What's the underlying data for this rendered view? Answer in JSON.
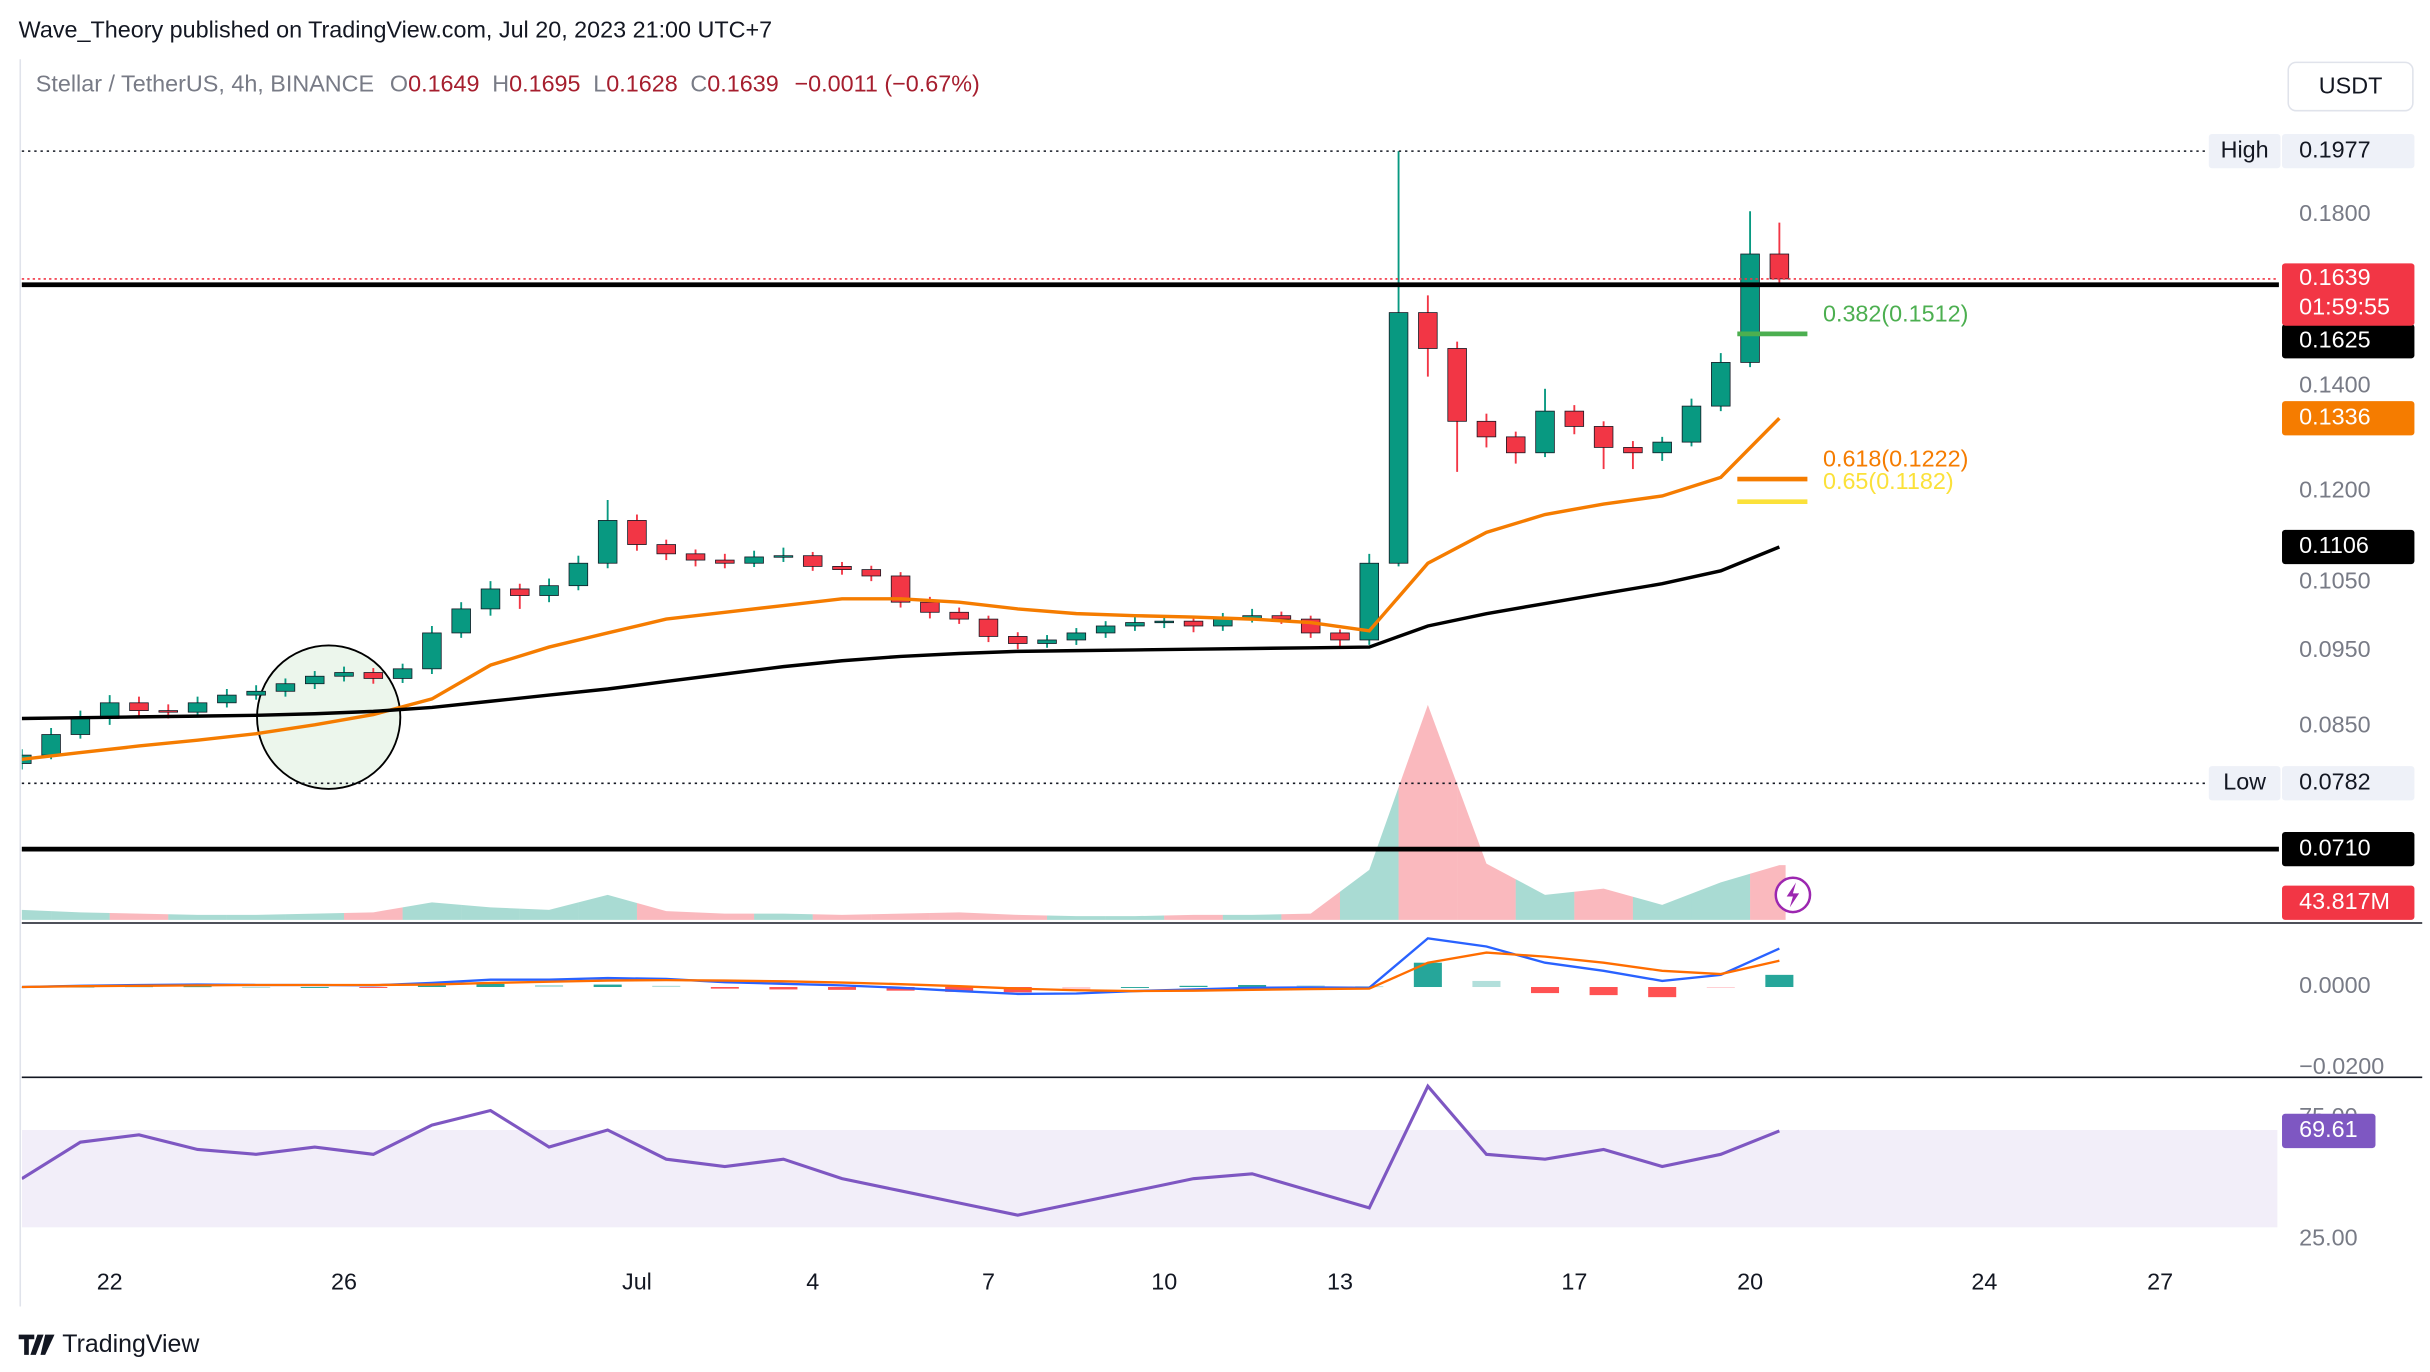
{
  "header": {
    "publisher": "Wave_Theory published on TradingView.com, Jul 20, 2023 21:00 UTC+7",
    "symbol": "Stellar / TetherUS, 4h, BINANCE",
    "ohlc": [
      {
        "key": "O",
        "value": "0.1649"
      },
      {
        "key": "H",
        "value": "0.1695"
      },
      {
        "key": "L",
        "value": "0.1628"
      },
      {
        "key": "C",
        "value": "0.1639"
      }
    ],
    "change": "−0.0011 (−0.67%)",
    "currency": "USDT"
  },
  "footer": {
    "logo": "TradingView"
  },
  "chart_data": [
    {
      "type": "candlestick",
      "x": [
        "2023-06-20T12:00",
        "2023-06-21T00:00",
        "2023-06-21T12:00",
        "2023-06-22T00:00",
        "2023-06-22T12:00",
        "2023-06-23T00:00",
        "2023-06-23T12:00",
        "2023-06-24T00:00",
        "2023-06-24T12:00",
        "2023-06-25T00:00",
        "2023-06-25T12:00",
        "2023-06-26T00:00",
        "2023-06-26T12:00",
        "2023-06-27T00:00",
        "2023-06-27T12:00",
        "2023-06-28T00:00",
        "2023-06-28T12:00",
        "2023-06-29T00:00",
        "2023-06-29T12:00",
        "2023-06-30T00:00",
        "2023-06-30T12:00",
        "2023-07-01T00:00",
        "2023-07-01T12:00",
        "2023-07-02T00:00",
        "2023-07-02T12:00",
        "2023-07-03T00:00",
        "2023-07-03T12:00",
        "2023-07-04T00:00",
        "2023-07-04T12:00",
        "2023-07-05T00:00",
        "2023-07-05T12:00",
        "2023-07-06T00:00",
        "2023-07-06T12:00",
        "2023-07-07T00:00",
        "2023-07-07T12:00",
        "2023-07-08T00:00",
        "2023-07-08T12:00",
        "2023-07-09T00:00",
        "2023-07-09T12:00",
        "2023-07-10T00:00",
        "2023-07-10T12:00",
        "2023-07-11T00:00",
        "2023-07-11T12:00",
        "2023-07-12T00:00",
        "2023-07-12T12:00",
        "2023-07-13T00:00",
        "2023-07-13T12:00",
        "2023-07-14T00:00",
        "2023-07-14T12:00",
        "2023-07-15T00:00",
        "2023-07-15T12:00",
        "2023-07-16T00:00",
        "2023-07-16T12:00",
        "2023-07-17T00:00",
        "2023-07-17T12:00",
        "2023-07-18T00:00",
        "2023-07-18T12:00",
        "2023-07-19T00:00",
        "2023-07-19T12:00",
        "2023-07-20T00:00",
        "2023-07-20T12:00"
      ],
      "candles": [
        [
          0.0805,
          0.0822,
          0.0798,
          0.0815
        ],
        [
          0.0815,
          0.0848,
          0.081,
          0.084
        ],
        [
          0.084,
          0.087,
          0.0835,
          0.086
        ],
        [
          0.086,
          0.089,
          0.0852,
          0.088
        ],
        [
          0.088,
          0.0888,
          0.0862,
          0.087
        ],
        [
          0.087,
          0.0878,
          0.086,
          0.0868
        ],
        [
          0.0868,
          0.0888,
          0.0862,
          0.088
        ],
        [
          0.088,
          0.0898,
          0.0874,
          0.089
        ],
        [
          0.089,
          0.0903,
          0.0884,
          0.0895
        ],
        [
          0.0895,
          0.0912,
          0.0888,
          0.0905
        ],
        [
          0.0905,
          0.0922,
          0.0898,
          0.0915
        ],
        [
          0.0915,
          0.0928,
          0.0908,
          0.092
        ],
        [
          0.092,
          0.0926,
          0.0905,
          0.0912
        ],
        [
          0.0912,
          0.0932,
          0.0906,
          0.0925
        ],
        [
          0.0925,
          0.0985,
          0.0918,
          0.0975
        ],
        [
          0.0975,
          0.102,
          0.0968,
          0.101
        ],
        [
          0.101,
          0.1052,
          0.1,
          0.104
        ],
        [
          0.104,
          0.1048,
          0.101,
          0.103
        ],
        [
          0.103,
          0.1056,
          0.102,
          0.1045
        ],
        [
          0.1045,
          0.1092,
          0.1038,
          0.108
        ],
        [
          0.108,
          0.1185,
          0.1072,
          0.115
        ],
        [
          0.115,
          0.116,
          0.11,
          0.111
        ],
        [
          0.111,
          0.1118,
          0.1085,
          0.1095
        ],
        [
          0.1095,
          0.1102,
          0.1075,
          0.1085
        ],
        [
          0.1085,
          0.1095,
          0.1072,
          0.108
        ],
        [
          0.108,
          0.11,
          0.1074,
          0.109
        ],
        [
          0.109,
          0.1105,
          0.1082,
          0.1092
        ],
        [
          0.1092,
          0.1098,
          0.1068,
          0.1075
        ],
        [
          0.1075,
          0.1082,
          0.1062,
          0.107
        ],
        [
          0.107,
          0.1076,
          0.1052,
          0.106
        ],
        [
          0.106,
          0.1066,
          0.1012,
          0.102
        ],
        [
          0.102,
          0.1028,
          0.0996,
          0.1005
        ],
        [
          0.1005,
          0.1012,
          0.0988,
          0.0995
        ],
        [
          0.0995,
          0.1,
          0.0962,
          0.097
        ],
        [
          0.097,
          0.0976,
          0.0952,
          0.096
        ],
        [
          0.096,
          0.0972,
          0.0954,
          0.0965
        ],
        [
          0.0965,
          0.0982,
          0.0958,
          0.0975
        ],
        [
          0.0975,
          0.0992,
          0.0968,
          0.0985
        ],
        [
          0.0985,
          0.0998,
          0.0978,
          0.099
        ],
        [
          0.099,
          0.1,
          0.0982,
          0.0992
        ],
        [
          0.0992,
          0.0998,
          0.0976,
          0.0985
        ],
        [
          0.0985,
          0.1004,
          0.0978,
          0.0995
        ],
        [
          0.0995,
          0.101,
          0.099,
          0.1
        ],
        [
          0.1,
          0.1006,
          0.0988,
          0.0995
        ],
        [
          0.0995,
          0.1,
          0.0968,
          0.0975
        ],
        [
          0.0975,
          0.098,
          0.0955,
          0.0965
        ],
        [
          0.0965,
          0.1095,
          0.0958,
          0.108
        ],
        [
          0.108,
          0.1977,
          0.1075,
          0.156
        ],
        [
          0.156,
          0.16,
          0.142,
          0.148
        ],
        [
          0.148,
          0.1495,
          0.1235,
          0.133
        ],
        [
          0.133,
          0.1345,
          0.128,
          0.13
        ],
        [
          0.13,
          0.131,
          0.125,
          0.127
        ],
        [
          0.127,
          0.1395,
          0.1262,
          0.135
        ],
        [
          0.135,
          0.1362,
          0.1305,
          0.132
        ],
        [
          0.132,
          0.133,
          0.124,
          0.128
        ],
        [
          0.128,
          0.1292,
          0.124,
          0.127
        ],
        [
          0.127,
          0.13,
          0.1255,
          0.129
        ],
        [
          0.129,
          0.1375,
          0.1282,
          0.136
        ],
        [
          0.136,
          0.147,
          0.135,
          0.145
        ],
        [
          0.145,
          0.181,
          0.144,
          0.17
        ],
        [
          0.17,
          0.178,
          0.162,
          0.1639
        ]
      ],
      "up_color": "#089981",
      "down_color": "#f23645",
      "log_scale": true,
      "ylim": [
        0.064,
        0.2252
      ],
      "yticks": [
        {
          "value": 0.18,
          "label": "0.1800"
        },
        {
          "value": 0.14,
          "label": "0.1400"
        },
        {
          "value": 0.12,
          "label": "0.1200"
        },
        {
          "value": 0.105,
          "label": "0.1050"
        },
        {
          "value": 0.095,
          "label": "0.0950"
        },
        {
          "value": 0.085,
          "label": "0.0850"
        }
      ],
      "xlim": [
        "2023-06-20T12:00",
        "2023-07-29T00:00"
      ],
      "xticks": [
        {
          "value": "2023-06-22T00:00",
          "label": "22"
        },
        {
          "value": "2023-06-26T00:00",
          "label": "26"
        },
        {
          "value": "2023-07-01T00:00",
          "label": "Jul"
        },
        {
          "value": "2023-07-04T00:00",
          "label": "4"
        },
        {
          "value": "2023-07-07T00:00",
          "label": "7"
        },
        {
          "value": "2023-07-10T00:00",
          "label": "10"
        },
        {
          "value": "2023-07-13T00:00",
          "label": "13"
        },
        {
          "value": "2023-07-17T00:00",
          "label": "17"
        },
        {
          "value": "2023-07-20T00:00",
          "label": "20"
        },
        {
          "value": "2023-07-24T00:00",
          "label": "24"
        },
        {
          "value": "2023-07-27T00:00",
          "label": "27"
        }
      ],
      "last": {
        "value": 0.1639,
        "countdown": "01:59:55",
        "color": "#f23645"
      },
      "high": {
        "name": "High",
        "value": 0.1977
      },
      "low": {
        "name": "Low",
        "value": 0.0782
      },
      "levels": [
        {
          "value": 0.1625
        },
        {
          "value": 0.071,
          "label": "0.0710"
        }
      ],
      "fib": [
        {
          "value": 0.1512,
          "label": "0.382(0.1512)",
          "color": "#4caf50"
        },
        {
          "value": 0.1222,
          "label": "0.618(0.1222)",
          "color": "#f57c00"
        },
        {
          "value": 0.1182,
          "label": "0.65(0.1182)",
          "color": "#fbe13a"
        }
      ]
    },
    {
      "type": "line",
      "overlay": true,
      "x": [
        "2023-06-20T12:00",
        "2023-06-21T12:00",
        "2023-06-22T12:00",
        "2023-06-23T12:00",
        "2023-06-24T12:00",
        "2023-06-25T12:00",
        "2023-06-26T12:00",
        "2023-06-27T12:00",
        "2023-06-28T12:00",
        "2023-06-29T12:00",
        "2023-06-30T12:00",
        "2023-07-01T12:00",
        "2023-07-02T12:00",
        "2023-07-03T12:00",
        "2023-07-04T12:00",
        "2023-07-05T12:00",
        "2023-07-06T12:00",
        "2023-07-07T12:00",
        "2023-07-08T12:00",
        "2023-07-09T12:00",
        "2023-07-10T12:00",
        "2023-07-11T12:00",
        "2023-07-12T12:00",
        "2023-07-13T12:00",
        "2023-07-14T12:00",
        "2023-07-15T12:00",
        "2023-07-16T12:00",
        "2023-07-17T12:00",
        "2023-07-18T12:00",
        "2023-07-19T12:00",
        "2023-07-20T12:00"
      ],
      "series": [
        {
          "color": "#f57c00",
          "values": [
            0.081,
            0.0818,
            0.0826,
            0.0833,
            0.0841,
            0.0852,
            0.0865,
            0.0885,
            0.093,
            0.0955,
            0.0975,
            0.0995,
            0.1005,
            0.1015,
            0.1025,
            0.1025,
            0.102,
            0.101,
            0.1003,
            0.1,
            0.0998,
            0.0995,
            0.099,
            0.0978,
            0.108,
            0.113,
            0.116,
            0.1178,
            0.1192,
            0.1225,
            0.1336
          ]
        },
        {
          "color": "#000000",
          "values": [
            0.086,
            0.0861,
            0.0862,
            0.0863,
            0.0864,
            0.0866,
            0.0869,
            0.0874,
            0.0882,
            0.089,
            0.0898,
            0.0908,
            0.0918,
            0.0928,
            0.0936,
            0.0942,
            0.0946,
            0.0949,
            0.095,
            0.0951,
            0.0952,
            0.0953,
            0.0954,
            0.0955,
            0.0985,
            0.1003,
            0.1018,
            0.1033,
            0.1048,
            0.1068,
            0.1106
          ]
        }
      ]
    },
    {
      "type": "area",
      "x": [
        "2023-06-20T12:00",
        "2023-06-21T12:00",
        "2023-06-22T12:00",
        "2023-06-23T12:00",
        "2023-06-24T12:00",
        "2023-06-25T12:00",
        "2023-06-26T12:00",
        "2023-06-27T12:00",
        "2023-06-28T12:00",
        "2023-06-29T12:00",
        "2023-06-30T12:00",
        "2023-07-01T12:00",
        "2023-07-02T12:00",
        "2023-07-03T12:00",
        "2023-07-04T12:00",
        "2023-07-05T12:00",
        "2023-07-06T12:00",
        "2023-07-07T12:00",
        "2023-07-08T12:00",
        "2023-07-09T12:00",
        "2023-07-10T12:00",
        "2023-07-11T12:00",
        "2023-07-12T12:00",
        "2023-07-13T12:00",
        "2023-07-14T12:00",
        "2023-07-15T12:00",
        "2023-07-16T12:00",
        "2023-07-17T12:00",
        "2023-07-18T12:00",
        "2023-07-19T12:00",
        "2023-07-20T12:00"
      ],
      "values": [
        8,
        6,
        5,
        4,
        4,
        5,
        6,
        14,
        10,
        8,
        20,
        7,
        5,
        5,
        4,
        5,
        6,
        4,
        3,
        3,
        4,
        4,
        5,
        40,
        172,
        45,
        20,
        25,
        12,
        30,
        43.817
      ],
      "last_label": "43.817M",
      "label_color": "#f23645",
      "ylim": [
        0,
        212
      ]
    },
    {
      "type": "macd",
      "x": [
        "2023-06-20T12:00",
        "2023-06-21T12:00",
        "2023-06-22T12:00",
        "2023-06-23T12:00",
        "2023-06-24T12:00",
        "2023-06-25T12:00",
        "2023-06-26T12:00",
        "2023-06-27T12:00",
        "2023-06-28T12:00",
        "2023-06-29T12:00",
        "2023-06-30T12:00",
        "2023-07-01T12:00",
        "2023-07-02T12:00",
        "2023-07-03T12:00",
        "2023-07-04T12:00",
        "2023-07-05T12:00",
        "2023-07-06T12:00",
        "2023-07-07T12:00",
        "2023-07-08T12:00",
        "2023-07-09T12:00",
        "2023-07-10T12:00",
        "2023-07-11T12:00",
        "2023-07-12T12:00",
        "2023-07-13T12:00",
        "2023-07-14T12:00",
        "2023-07-15T12:00",
        "2023-07-16T12:00",
        "2023-07-17T12:00",
        "2023-07-18T12:00",
        "2023-07-19T12:00",
        "2023-07-20T12:00"
      ],
      "series": [
        {
          "color": "#2962ff",
          "values": [
            0.0,
            0.0003,
            0.0005,
            0.0006,
            0.0005,
            0.0005,
            0.0004,
            0.001,
            0.0018,
            0.0018,
            0.0022,
            0.002,
            0.0012,
            0.0008,
            0.0004,
            -0.0002,
            -0.001,
            -0.0017,
            -0.0016,
            -0.001,
            -0.0006,
            -0.0002,
            -0.0001,
            -0.0002,
            0.012,
            0.01,
            0.006,
            0.004,
            0.0015,
            0.003,
            0.0095
          ]
        },
        {
          "color": "#ff6d00",
          "values": [
            0.0,
            0.0002,
            0.0003,
            0.0004,
            0.0005,
            0.0005,
            0.0005,
            0.0006,
            0.001,
            0.0013,
            0.0016,
            0.0017,
            0.0016,
            0.0014,
            0.0011,
            0.0007,
            0.0002,
            -0.0004,
            -0.0008,
            -0.001,
            -0.0009,
            -0.0007,
            -0.0005,
            -0.0004,
            0.006,
            0.0085,
            0.0075,
            0.006,
            0.004,
            0.0032,
            0.0065
          ]
        }
      ],
      "histogram": [
        0,
        0.0001,
        0.0002,
        0.0002,
        0,
        0,
        -0.0001,
        0.0004,
        0.0008,
        0.0005,
        0.0006,
        0.0003,
        -0.0004,
        -0.0006,
        -0.0007,
        -0.0009,
        -0.0012,
        -0.0013,
        -0.0008,
        0,
        0.0003,
        0.0005,
        0.0004,
        0.0002,
        0.006,
        0.0015,
        -0.0015,
        -0.002,
        -0.0025,
        -0.0002,
        0.003
      ],
      "hist_colors": [
        "#26a69a",
        "#b2dfdb",
        "#ff5252",
        "#ffcdd2"
      ],
      "ylim": [
        -0.0219,
        0.0158
      ],
      "yticks": [
        {
          "value": 0,
          "label": "0.0000"
        },
        {
          "value": -0.02,
          "label": "−0.0200"
        }
      ]
    },
    {
      "type": "line",
      "x": [
        "2023-06-20T12:00",
        "2023-06-21T12:00",
        "2023-06-22T12:00",
        "2023-06-23T12:00",
        "2023-06-24T12:00",
        "2023-06-25T12:00",
        "2023-06-26T12:00",
        "2023-06-27T12:00",
        "2023-06-28T12:00",
        "2023-06-29T12:00",
        "2023-06-30T12:00",
        "2023-07-01T12:00",
        "2023-07-02T12:00",
        "2023-07-03T12:00",
        "2023-07-04T12:00",
        "2023-07-05T12:00",
        "2023-07-06T12:00",
        "2023-07-07T12:00",
        "2023-07-08T12:00",
        "2023-07-09T12:00",
        "2023-07-10T12:00",
        "2023-07-11T12:00",
        "2023-07-12T12:00",
        "2023-07-13T12:00",
        "2023-07-14T12:00",
        "2023-07-15T12:00",
        "2023-07-16T12:00",
        "2023-07-17T12:00",
        "2023-07-18T12:00",
        "2023-07-19T12:00",
        "2023-07-20T12:00"
      ],
      "values": [
        50,
        65,
        68,
        62,
        60,
        63,
        60,
        72,
        78,
        63,
        70,
        58,
        55,
        58,
        50,
        45,
        40,
        35,
        40,
        45,
        50,
        52,
        45,
        38,
        88,
        60,
        58,
        62,
        55,
        60,
        69.61
      ],
      "color": "#7e57c2",
      "band": [
        30,
        70
      ],
      "ylim": [
        15.4,
        91
      ],
      "yticks": [
        {
          "value": 75,
          "label": "75.00"
        },
        {
          "value": 25,
          "label": "25.00"
        }
      ]
    }
  ]
}
